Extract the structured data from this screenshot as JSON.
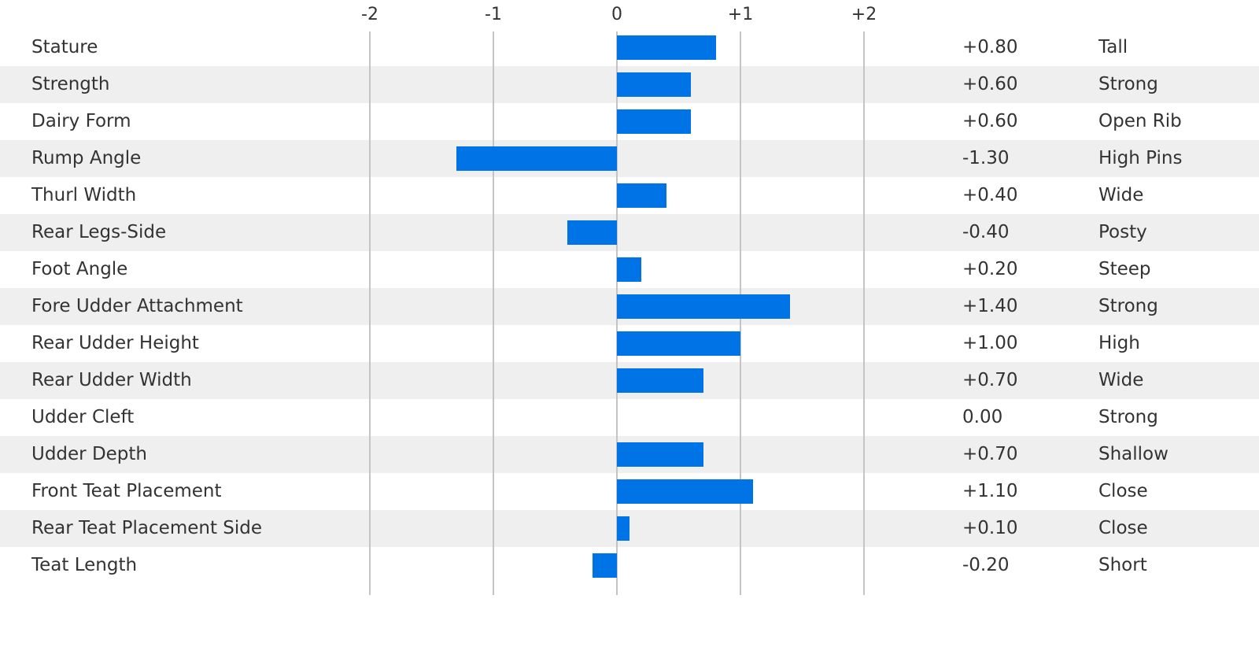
{
  "chart_data": {
    "type": "bar",
    "orientation": "horizontal",
    "title": "",
    "xlim": [
      -2,
      2
    ],
    "tick_labels": [
      "-2",
      "-1",
      "0",
      "+1",
      "+2"
    ],
    "ticks": [
      -2,
      -1,
      0,
      1,
      2
    ],
    "bar_color": "#0073e6",
    "categories": [
      "Stature",
      "Strength",
      "Dairy Form",
      "Rump Angle",
      "Thurl Width",
      "Rear Legs-Side",
      "Foot Angle",
      "Fore Udder Attachment",
      "Rear Udder Height",
      "Rear Udder Width",
      "Udder Cleft",
      "Udder Depth",
      "Front Teat Placement",
      "Rear Teat Placement Side",
      "Teat Length"
    ],
    "values": [
      0.8,
      0.6,
      0.6,
      -1.3,
      0.4,
      -0.4,
      0.2,
      1.4,
      1.0,
      0.7,
      0.0,
      0.7,
      1.1,
      0.1,
      -0.2
    ],
    "value_labels": [
      "+0.80",
      "+0.60",
      "+0.60",
      "-1.30",
      "+0.40",
      "-0.40",
      "+0.20",
      "+1.40",
      "+1.00",
      "+0.70",
      "0.00",
      "+0.70",
      "+1.10",
      "+0.10",
      "-0.20"
    ],
    "descriptors": [
      "Tall",
      "Strong",
      "Open Rib",
      "High Pins",
      "Wide",
      "Posty",
      "Steep",
      "Strong",
      "High",
      "Wide",
      "Strong",
      "Shallow",
      "Close",
      "Close",
      "Short"
    ]
  }
}
